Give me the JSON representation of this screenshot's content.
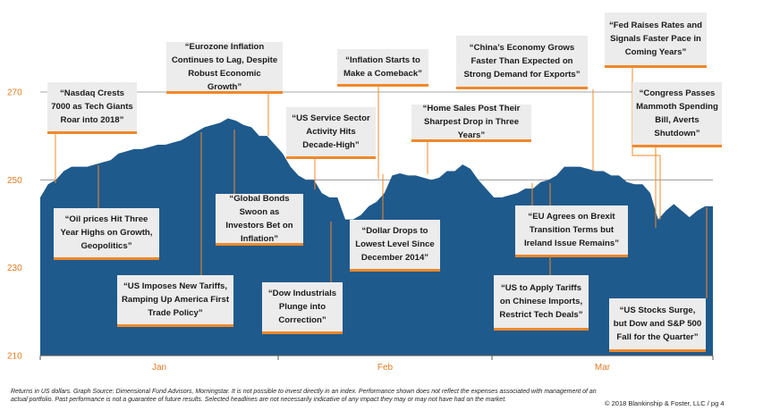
{
  "chart_data": {
    "type": "area",
    "ylim": [
      210,
      275
    ],
    "yticks": [
      "210",
      "230",
      "250",
      "270"
    ],
    "xtick_labels": [
      "Jan",
      "Feb",
      "Mar"
    ],
    "series": [
      {
        "values": [
          246,
          249,
          250,
          252,
          253,
          253,
          253,
          253.5,
          254,
          254.5,
          256,
          256.5,
          257,
          257,
          257.5,
          258,
          258,
          258.5,
          259,
          260,
          261,
          262,
          262.5,
          263,
          264,
          263.5,
          262.5,
          262,
          260,
          260,
          258,
          256,
          253,
          251,
          250,
          250,
          247,
          246,
          246,
          241,
          241,
          242,
          244,
          245,
          247,
          251,
          251.5,
          251,
          251,
          250.5,
          250,
          250.5,
          252,
          252,
          253.5,
          252.5,
          250,
          248,
          246,
          246,
          246.5,
          247,
          248,
          248,
          249.5,
          250,
          251,
          253,
          253,
          253,
          252.5,
          252,
          252,
          251,
          251,
          249.5,
          249,
          249,
          247,
          241,
          243,
          244.5,
          243,
          241.5,
          243,
          244,
          244
        ]
      }
    ],
    "annotations": [
      {
        "id": "nasdaq",
        "text": "“Nasdaq Crests 7000 as Tech Giants Roar into 2018”"
      },
      {
        "id": "oil",
        "text": "“Oil prices Hit Three Year Highs on Growth, Geopolitics”"
      },
      {
        "id": "tariffs",
        "text": "“US Imposes New Tariffs, Ramping Up America First Trade Policy”"
      },
      {
        "id": "eurozone",
        "text": "“Eurozone Inflation Continues to Lag, Despite Robust Economic Growth”"
      },
      {
        "id": "bonds",
        "text": "“Global Bonds Swoon as Investors Bet on Inflation”"
      },
      {
        "id": "service",
        "text": "“US Service Sector Activity Hits Decade-High”"
      },
      {
        "id": "dow",
        "text": "“Dow Industrials Plunge into Correction”"
      },
      {
        "id": "inflation",
        "text": "“Inflation Starts to Make a Comeback”"
      },
      {
        "id": "dollar",
        "text": "“Dollar Drops to Lowest Level Since December 2014”"
      },
      {
        "id": "home",
        "text": "“Home Sales Post Their Sharpest Drop in Three Years”"
      },
      {
        "id": "china",
        "text": "“China’s Economy Grows Faster Than Expected on Strong Demand for Exports”"
      },
      {
        "id": "eu",
        "text": "“EU Agrees on Brexit Transition Terms but Ireland Issue Remains”"
      },
      {
        "id": "us_tariffs",
        "text": "“US to Apply Tariffs on Chinese Imports, Restrict Tech Deals”"
      },
      {
        "id": "fed",
        "text": "“Fed Raises Rates and Signals Faster Pace in Coming Years”"
      },
      {
        "id": "congress",
        "text": "“Congress Passes Mammoth Spending Bill, Averts Shutdown”"
      },
      {
        "id": "stocks",
        "text": "“US Stocks Surge, but Dow and S&P 500 Fall for the Quarter”"
      }
    ],
    "colors": {
      "fill": "#1f5a8c",
      "accent": "#f0882a",
      "tick": "#e07b25",
      "box": "#ececec"
    }
  },
  "footnote": "Returns in US dollars. Graph Source: Dimensional Fund Advisors, Morningstar. It is not possible to invest directly in an index. Performance shown does not reflect the expenses associated with management of an actual portfolio. Past performance is not a guarantee of future results. Selected headlines are not necessarily indicative of any impact they may or may not have had on the market.",
  "copyright": "© 2018 Blankinship & Foster, LLC / pg 4"
}
